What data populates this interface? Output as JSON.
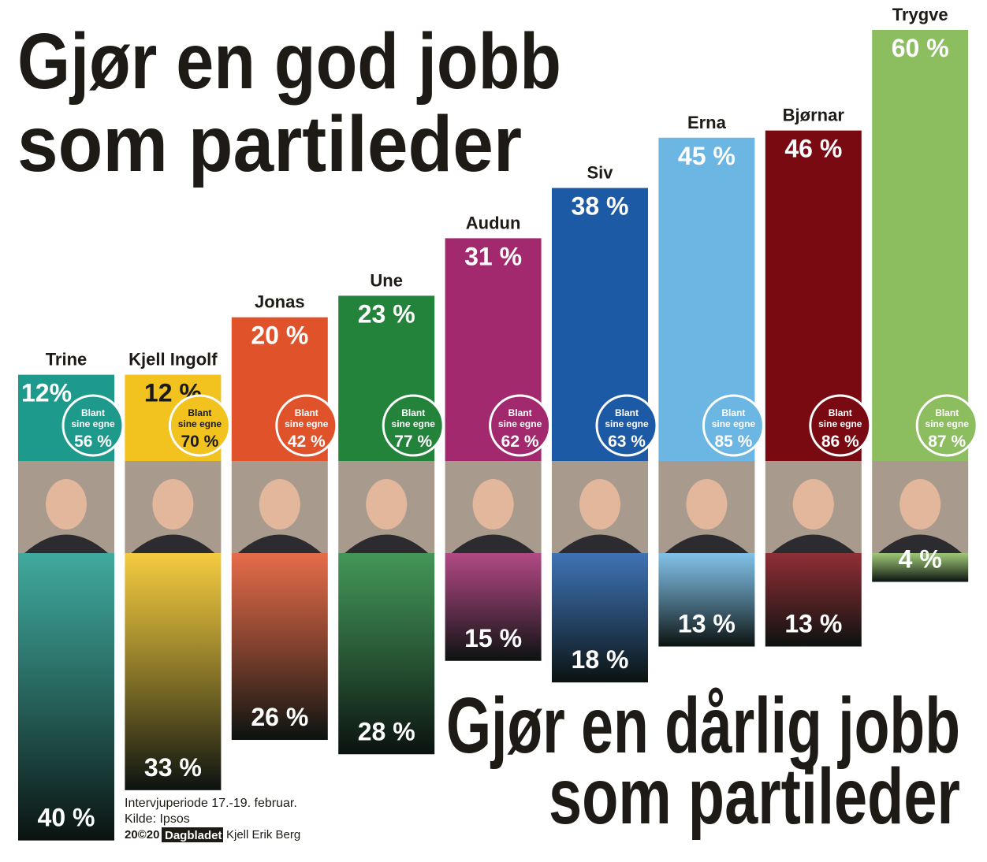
{
  "chart_data": {
    "type": "bar",
    "categories": [
      "Trine",
      "Kjell Ingolf",
      "Jonas",
      "Une",
      "Audun",
      "Siv",
      "Erna",
      "Bjørnar",
      "Trygve"
    ],
    "colors": [
      "#1e9a8c",
      "#f2c21e",
      "#e0522a",
      "#23833b",
      "#a3296e",
      "#1d5aa6",
      "#6cb6e3",
      "#7a0a12",
      "#8cbd5e"
    ],
    "text_colors": [
      "#ffffff",
      "#1a1a1a",
      "#ffffff",
      "#ffffff",
      "#ffffff",
      "#ffffff",
      "#ffffff",
      "#ffffff",
      "#ffffff"
    ],
    "ylim": [
      0,
      60
    ],
    "series": [
      {
        "title_lines": [
          "Gjør en god jobb",
          "som partileder"
        ],
        "values": [
          12,
          12,
          20,
          23,
          31,
          38,
          45,
          46,
          60
        ],
        "value_labels": [
          "12%",
          "12 %",
          "20 %",
          "23 %",
          "31 %",
          "38 %",
          "45 %",
          "46 %",
          "60 %"
        ]
      },
      {
        "title_lines": [
          "Gjør en dårlig jobb",
          "som partileder"
        ],
        "values": [
          40,
          33,
          26,
          28,
          15,
          18,
          13,
          13,
          4
        ],
        "value_labels": [
          "40 %",
          "33 %",
          "26 %",
          "28 %",
          "15 %",
          "18 %",
          "13 %",
          "13 %",
          "4 %"
        ]
      }
    ],
    "own_party": {
      "label_lines": [
        "Blant",
        "sine egne"
      ],
      "values": [
        56,
        70,
        42,
        77,
        62,
        63,
        85,
        86,
        87
      ],
      "value_labels": [
        "56 %",
        "70 %",
        "42 %",
        "77 %",
        "62 %",
        "63 %",
        "85 %",
        "86 %",
        "87 %"
      ]
    },
    "footer": {
      "period": "Intervjuperiode 17.-19. februar.",
      "source": "Kilde: Ipsos",
      "year": "20©20",
      "brand": "Dagbladet",
      "author": "Kjell Erik Berg"
    }
  }
}
